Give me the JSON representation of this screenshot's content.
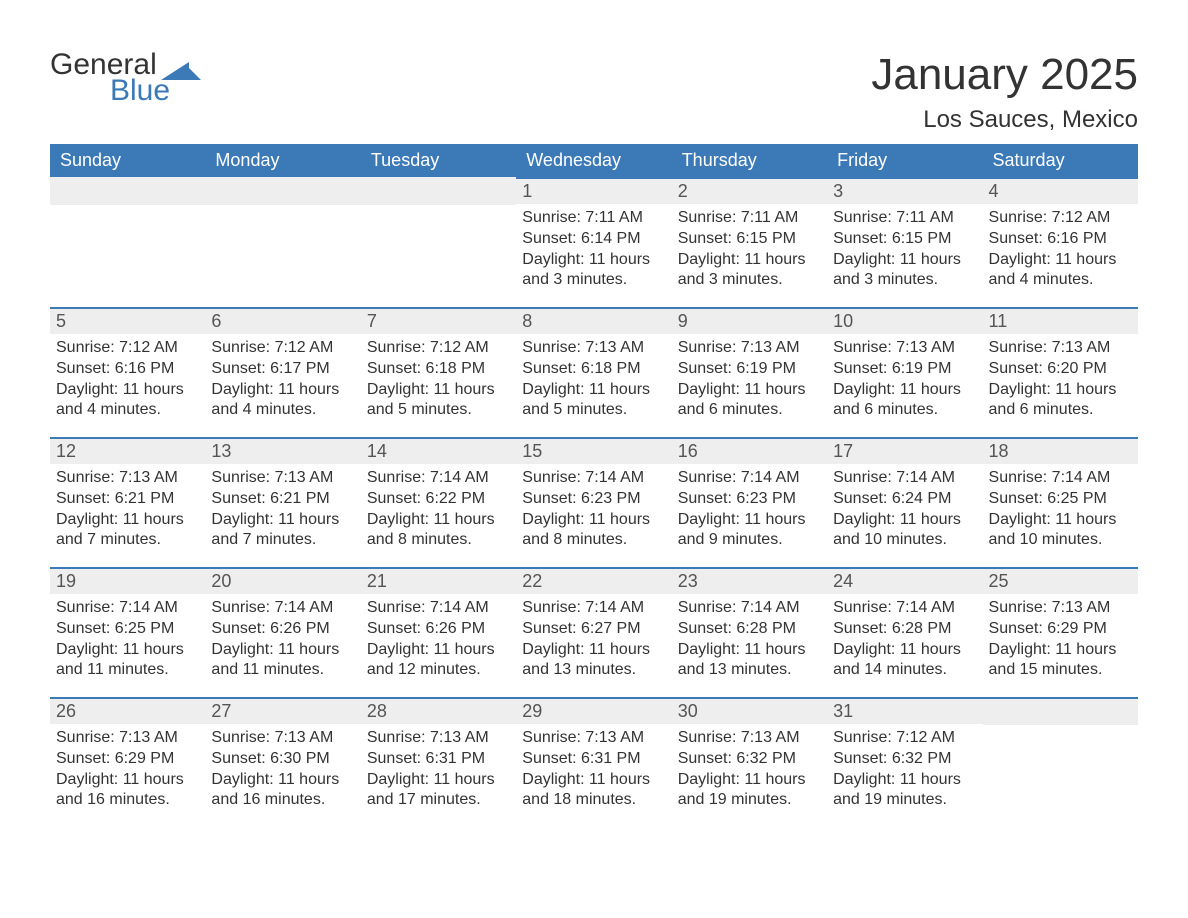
{
  "logo": {
    "word1": "General",
    "word2": "Blue"
  },
  "title": "January 2025",
  "subtitle": "Los Sauces, Mexico",
  "colors": {
    "header_bg": "#3b79b7",
    "header_fg": "#ffffff",
    "row_border": "#3b79b7",
    "daynum_bg": "#eeeeee",
    "page_bg": "#ffffff",
    "text": "#333333",
    "logo_blue": "#3b79b7"
  },
  "columns": [
    "Sunday",
    "Monday",
    "Tuesday",
    "Wednesday",
    "Thursday",
    "Friday",
    "Saturday"
  ],
  "weeks": [
    [
      null,
      null,
      null,
      {
        "n": "1",
        "sr": "7:11 AM",
        "ss": "6:14 PM",
        "dl": "11 hours and 3 minutes."
      },
      {
        "n": "2",
        "sr": "7:11 AM",
        "ss": "6:15 PM",
        "dl": "11 hours and 3 minutes."
      },
      {
        "n": "3",
        "sr": "7:11 AM",
        "ss": "6:15 PM",
        "dl": "11 hours and 3 minutes."
      },
      {
        "n": "4",
        "sr": "7:12 AM",
        "ss": "6:16 PM",
        "dl": "11 hours and 4 minutes."
      }
    ],
    [
      {
        "n": "5",
        "sr": "7:12 AM",
        "ss": "6:16 PM",
        "dl": "11 hours and 4 minutes."
      },
      {
        "n": "6",
        "sr": "7:12 AM",
        "ss": "6:17 PM",
        "dl": "11 hours and 4 minutes."
      },
      {
        "n": "7",
        "sr": "7:12 AM",
        "ss": "6:18 PM",
        "dl": "11 hours and 5 minutes."
      },
      {
        "n": "8",
        "sr": "7:13 AM",
        "ss": "6:18 PM",
        "dl": "11 hours and 5 minutes."
      },
      {
        "n": "9",
        "sr": "7:13 AM",
        "ss": "6:19 PM",
        "dl": "11 hours and 6 minutes."
      },
      {
        "n": "10",
        "sr": "7:13 AM",
        "ss": "6:19 PM",
        "dl": "11 hours and 6 minutes."
      },
      {
        "n": "11",
        "sr": "7:13 AM",
        "ss": "6:20 PM",
        "dl": "11 hours and 6 minutes."
      }
    ],
    [
      {
        "n": "12",
        "sr": "7:13 AM",
        "ss": "6:21 PM",
        "dl": "11 hours and 7 minutes."
      },
      {
        "n": "13",
        "sr": "7:13 AM",
        "ss": "6:21 PM",
        "dl": "11 hours and 7 minutes."
      },
      {
        "n": "14",
        "sr": "7:14 AM",
        "ss": "6:22 PM",
        "dl": "11 hours and 8 minutes."
      },
      {
        "n": "15",
        "sr": "7:14 AM",
        "ss": "6:23 PM",
        "dl": "11 hours and 8 minutes."
      },
      {
        "n": "16",
        "sr": "7:14 AM",
        "ss": "6:23 PM",
        "dl": "11 hours and 9 minutes."
      },
      {
        "n": "17",
        "sr": "7:14 AM",
        "ss": "6:24 PM",
        "dl": "11 hours and 10 minutes."
      },
      {
        "n": "18",
        "sr": "7:14 AM",
        "ss": "6:25 PM",
        "dl": "11 hours and 10 minutes."
      }
    ],
    [
      {
        "n": "19",
        "sr": "7:14 AM",
        "ss": "6:25 PM",
        "dl": "11 hours and 11 minutes."
      },
      {
        "n": "20",
        "sr": "7:14 AM",
        "ss": "6:26 PM",
        "dl": "11 hours and 11 minutes."
      },
      {
        "n": "21",
        "sr": "7:14 AM",
        "ss": "6:26 PM",
        "dl": "11 hours and 12 minutes."
      },
      {
        "n": "22",
        "sr": "7:14 AM",
        "ss": "6:27 PM",
        "dl": "11 hours and 13 minutes."
      },
      {
        "n": "23",
        "sr": "7:14 AM",
        "ss": "6:28 PM",
        "dl": "11 hours and 13 minutes."
      },
      {
        "n": "24",
        "sr": "7:14 AM",
        "ss": "6:28 PM",
        "dl": "11 hours and 14 minutes."
      },
      {
        "n": "25",
        "sr": "7:13 AM",
        "ss": "6:29 PM",
        "dl": "11 hours and 15 minutes."
      }
    ],
    [
      {
        "n": "26",
        "sr": "7:13 AM",
        "ss": "6:29 PM",
        "dl": "11 hours and 16 minutes."
      },
      {
        "n": "27",
        "sr": "7:13 AM",
        "ss": "6:30 PM",
        "dl": "11 hours and 16 minutes."
      },
      {
        "n": "28",
        "sr": "7:13 AM",
        "ss": "6:31 PM",
        "dl": "11 hours and 17 minutes."
      },
      {
        "n": "29",
        "sr": "7:13 AM",
        "ss": "6:31 PM",
        "dl": "11 hours and 18 minutes."
      },
      {
        "n": "30",
        "sr": "7:13 AM",
        "ss": "6:32 PM",
        "dl": "11 hours and 19 minutes."
      },
      {
        "n": "31",
        "sr": "7:12 AM",
        "ss": "6:32 PM",
        "dl": "11 hours and 19 minutes."
      },
      null
    ]
  ],
  "labels": {
    "sunrise": "Sunrise: ",
    "sunset": "Sunset: ",
    "daylight": "Daylight: "
  }
}
